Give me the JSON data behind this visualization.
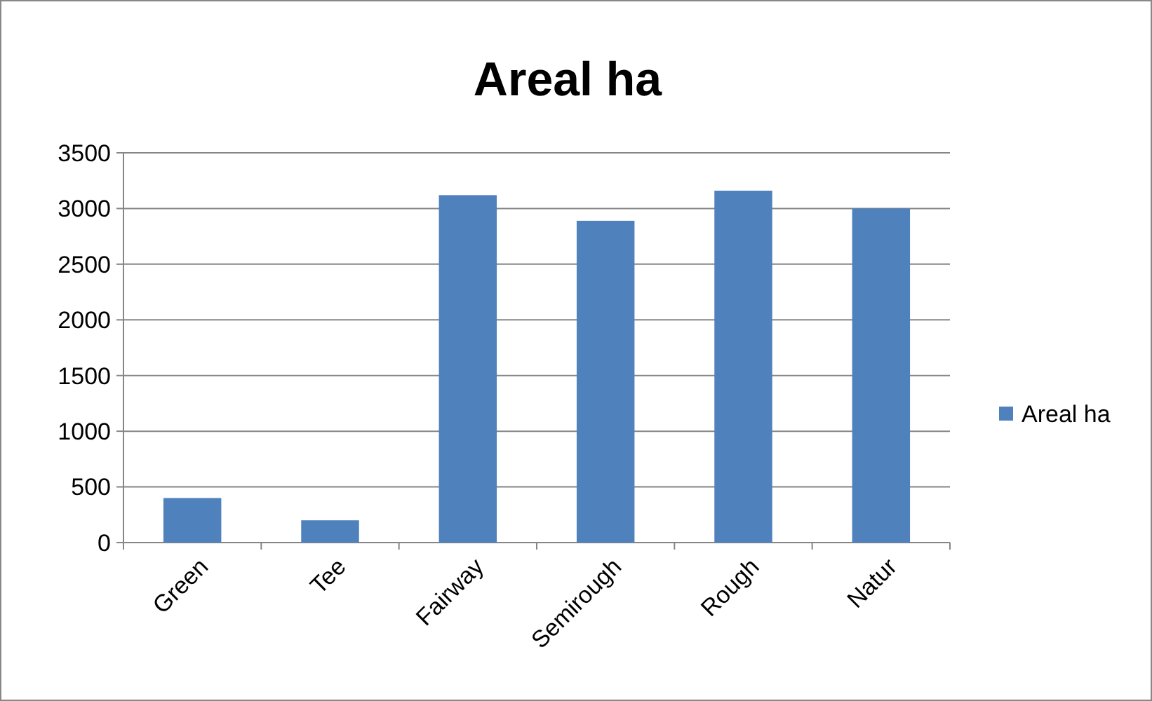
{
  "chart_data": {
    "type": "bar",
    "title": "Areal ha",
    "categories": [
      "Green",
      "Tee",
      "Fairway",
      "Semirough",
      "Rough",
      "Natur"
    ],
    "series": [
      {
        "name": "Areal ha",
        "color": "#4f81bd",
        "values": [
          400,
          200,
          3120,
          2890,
          3160,
          3000
        ]
      }
    ],
    "ylim": [
      0,
      3500
    ],
    "yticks": [
      0,
      500,
      1000,
      1500,
      2000,
      2500,
      3000,
      3500
    ],
    "grid": "y",
    "legend": "right"
  }
}
